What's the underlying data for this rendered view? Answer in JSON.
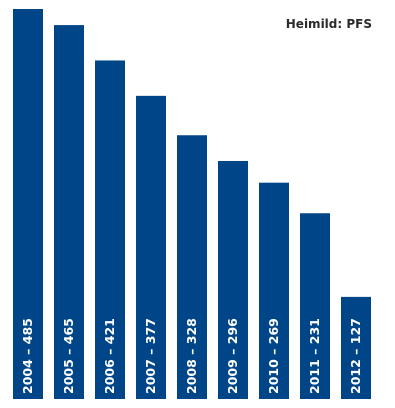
{
  "source": "Heimild: PFS",
  "colors": {
    "bar": "#004587",
    "bar_label": "#ffffff",
    "source_text": "#2b2b2b",
    "background": "#ffffff"
  },
  "chart_data": {
    "type": "bar",
    "orientation": "vertical",
    "categories": [
      "2004",
      "2005",
      "2006",
      "2007",
      "2008",
      "2009",
      "2010",
      "2011",
      "2012"
    ],
    "values": [
      485,
      465,
      421,
      377,
      328,
      296,
      269,
      231,
      127
    ],
    "bar_labels": [
      "2004 – 485",
      "2005 – 465",
      "2006 – 421",
      "2007 – 377",
      "2008 – 328",
      "2009 – 296",
      "2010 – 269",
      "2011 – 231",
      "2012 – 127"
    ],
    "title": "",
    "xlabel": "",
    "ylabel": "",
    "ylim": [
      0,
      485
    ],
    "grid": false,
    "legend": "none"
  }
}
